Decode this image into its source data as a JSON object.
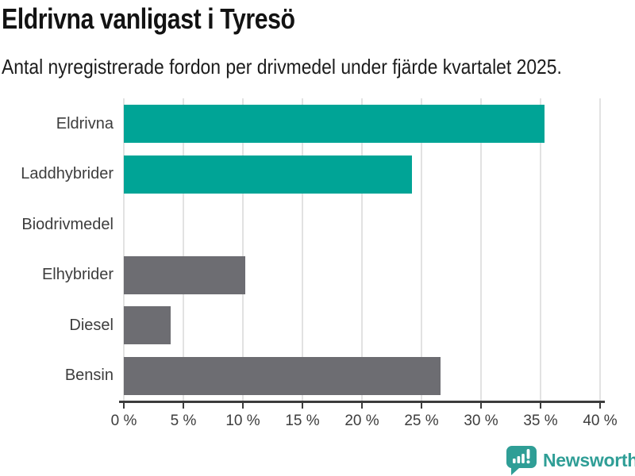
{
  "chart_data": {
    "type": "bar",
    "orientation": "horizontal",
    "title": "Eldrivna vanligast i Tyresö",
    "subtitle": "Antal nyregistrerade fordon per drivmedel under fjärde kvartalet 2025.",
    "categories": [
      "Eldrivna",
      "Laddhybrider",
      "Biodrivmedel",
      "Elhybrider",
      "Diesel",
      "Bensin"
    ],
    "values": [
      35.3,
      24.2,
      0,
      10.2,
      3.9,
      26.6
    ],
    "value_unit": "%",
    "bar_colors": [
      "#00a496",
      "#00a496",
      "#6d6d72",
      "#6d6d72",
      "#6d6d72",
      "#6d6d72"
    ],
    "highlight_color": "#00a496",
    "default_color": "#6d6d72",
    "xlim": [
      0,
      40
    ],
    "xticks": [
      0,
      5,
      10,
      15,
      20,
      25,
      30,
      35,
      40
    ],
    "xtick_labels": [
      "0 %",
      "5 %",
      "10 %",
      "15 %",
      "20 %",
      "25 %",
      "30 %",
      "35 %",
      "40 %"
    ],
    "grid": true,
    "gridline_color": "#e2e2e2",
    "axis_color": "#3c3c3c",
    "legend": false
  },
  "footer": {
    "brand": "Newsworthy",
    "brand_color": "#2f9e96",
    "icon": "newsworthy-logo-icon"
  }
}
